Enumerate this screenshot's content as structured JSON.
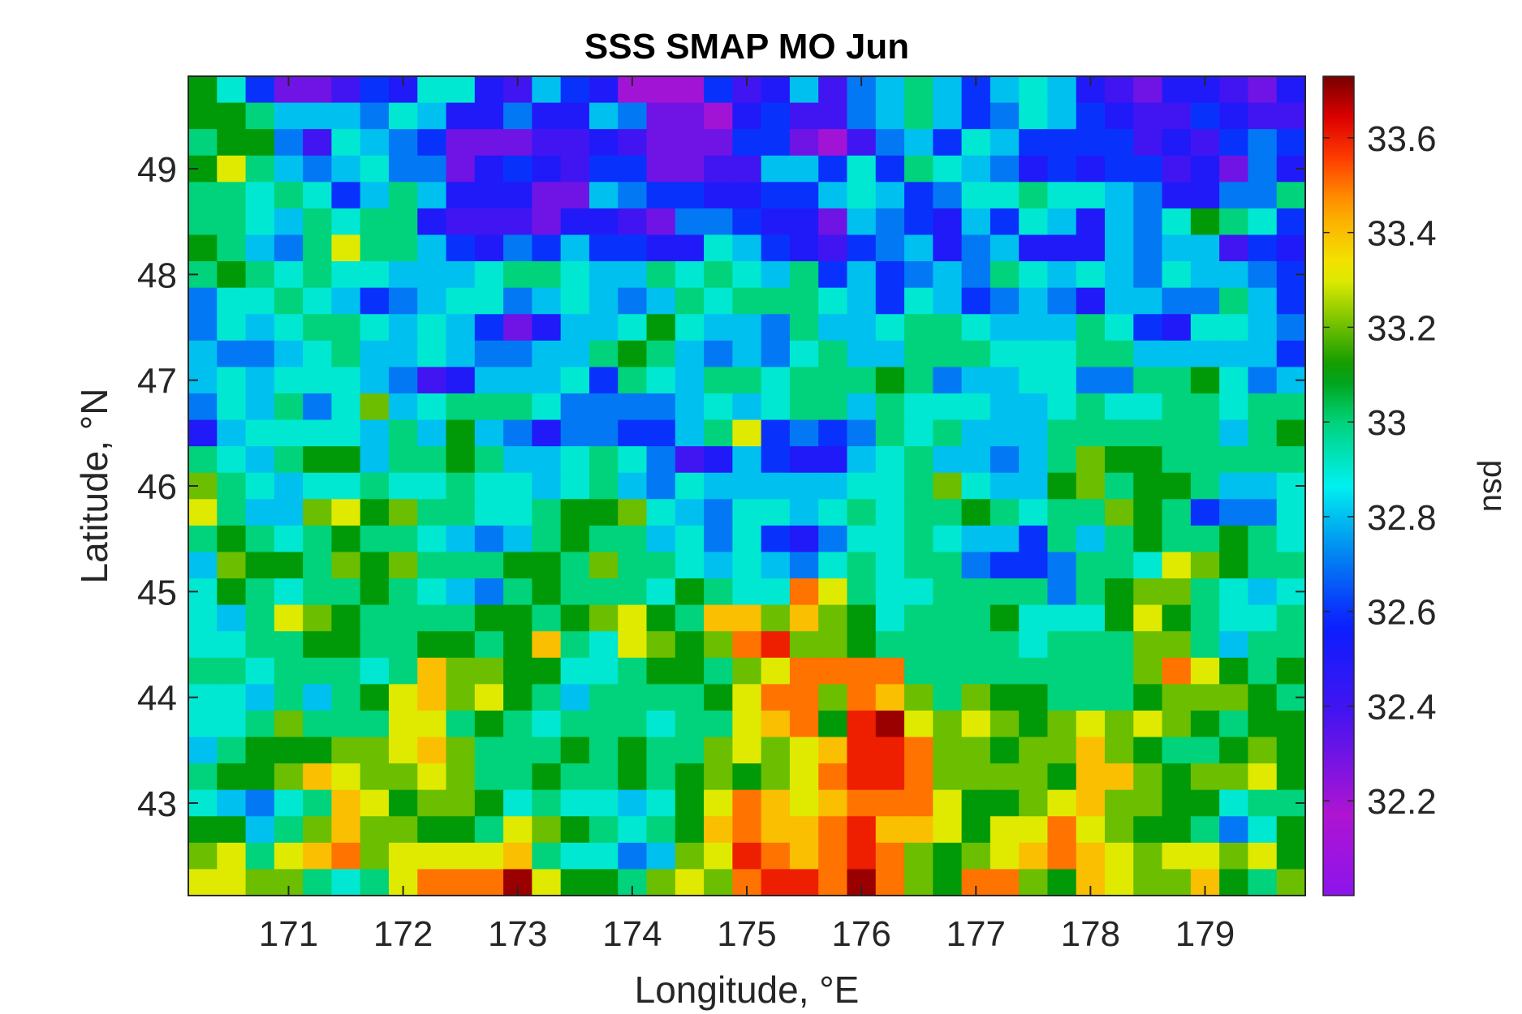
{
  "chart_data": {
    "type": "heatmap",
    "title": "SSS SMAP MO Jun",
    "xlabel": "Longitude, °E",
    "ylabel": "Latitude, °N",
    "colorbar_label": "psu",
    "xlim": [
      170.125,
      179.875
    ],
    "ylim": [
      42.125,
      49.875
    ],
    "clim": [
      32.0,
      33.73
    ],
    "x_ticks": [
      171,
      172,
      173,
      174,
      175,
      176,
      177,
      178,
      179
    ],
    "x_tick_labels": [
      "171",
      "172",
      "173",
      "174",
      "175",
      "176",
      "177",
      "178",
      "179"
    ],
    "y_ticks": [
      43,
      44,
      45,
      46,
      47,
      48,
      49
    ],
    "y_tick_labels": [
      "43",
      "44",
      "45",
      "46",
      "47",
      "48",
      "49"
    ],
    "colorbar_ticks": [
      32.2,
      32.4,
      32.6,
      32.8,
      33.0,
      33.2,
      33.4,
      33.6
    ],
    "colorbar_tick_labels": [
      "32.2",
      "32.4",
      "32.6",
      "32.8",
      "33",
      "33.2",
      "33.4",
      "33.6"
    ],
    "colormap": "jet-like (purple-blue-cyan-green-yellow-red-darkred)",
    "grid_resolution_deg": 0.25,
    "x": [
      170.25,
      170.5,
      170.75,
      171.0,
      171.25,
      171.5,
      171.75,
      172.0,
      172.25,
      172.5,
      172.75,
      173.0,
      173.25,
      173.5,
      173.75,
      174.0,
      174.25,
      174.5,
      174.75,
      175.0,
      175.25,
      175.5,
      175.75,
      176.0,
      176.25,
      176.5,
      176.75,
      177.0,
      177.25,
      177.5,
      177.75,
      178.0,
      178.25,
      178.5,
      178.75,
      179.0,
      179.25,
      179.5,
      179.75
    ],
    "y": [
      49.75,
      49.5,
      49.25,
      49.0,
      48.75,
      48.5,
      48.25,
      48.0,
      47.75,
      47.5,
      47.25,
      47.0,
      46.75,
      46.5,
      46.25,
      46.0,
      45.75,
      45.5,
      45.25,
      45.0,
      44.75,
      44.5,
      44.25,
      44.0,
      43.75,
      43.5,
      43.25,
      43.0,
      42.75,
      42.5,
      42.25
    ],
    "z_psu_rows_north_to_south": [
      [
        33.1,
        32.9,
        32.6,
        32.3,
        32.3,
        32.4,
        32.6,
        32.5,
        32.9,
        32.9,
        32.5,
        32.4,
        32.8,
        32.6,
        32.5,
        32.2,
        32.2,
        32.2,
        32.6,
        32.4,
        32.5,
        32.8,
        32.4,
        32.7,
        32.8,
        33.0,
        32.8,
        32.6,
        32.8,
        32.9,
        32.8,
        32.5,
        32.4,
        32.3,
        32.5,
        32.5,
        32.4,
        32.3,
        32.5
      ],
      [
        33.1,
        33.1,
        33.0,
        32.8,
        32.8,
        32.8,
        32.7,
        32.9,
        32.8,
        32.5,
        32.5,
        32.7,
        32.5,
        32.5,
        32.8,
        32.7,
        32.3,
        32.3,
        32.2,
        32.5,
        32.6,
        32.4,
        32.4,
        32.7,
        32.8,
        33.0,
        32.8,
        32.6,
        32.7,
        32.9,
        32.8,
        32.6,
        32.5,
        32.4,
        32.4,
        32.6,
        32.5,
        32.4,
        32.4
      ],
      [
        33.0,
        33.1,
        33.1,
        32.7,
        32.4,
        32.9,
        32.8,
        32.7,
        32.6,
        32.3,
        32.3,
        32.3,
        32.4,
        32.4,
        32.5,
        32.4,
        32.3,
        32.3,
        32.3,
        32.6,
        32.6,
        32.3,
        32.2,
        32.4,
        32.7,
        32.8,
        32.6,
        32.9,
        32.8,
        32.6,
        32.6,
        32.6,
        32.6,
        32.4,
        32.5,
        32.4,
        32.6,
        32.7,
        32.6
      ],
      [
        33.1,
        33.3,
        33.0,
        32.8,
        32.7,
        32.8,
        32.9,
        32.7,
        32.7,
        32.3,
        32.5,
        32.6,
        32.5,
        32.4,
        32.6,
        32.6,
        32.3,
        32.3,
        32.4,
        32.4,
        32.8,
        32.8,
        32.6,
        32.9,
        32.6,
        33.0,
        32.9,
        32.8,
        32.7,
        32.5,
        32.6,
        32.5,
        32.6,
        32.6,
        32.4,
        32.5,
        32.3,
        32.7,
        32.5
      ],
      [
        33.0,
        33.0,
        32.9,
        33.0,
        32.9,
        32.6,
        32.8,
        33.0,
        32.8,
        32.5,
        32.5,
        32.5,
        32.3,
        32.3,
        32.8,
        32.7,
        32.6,
        32.6,
        32.5,
        32.5,
        32.6,
        32.6,
        32.8,
        32.9,
        32.8,
        32.6,
        32.7,
        32.9,
        32.9,
        33.0,
        32.9,
        32.9,
        32.8,
        32.7,
        32.5,
        32.5,
        32.7,
        32.7,
        33.0
      ],
      [
        33.0,
        33.0,
        32.9,
        32.8,
        33.0,
        32.9,
        33.0,
        33.0,
        32.5,
        32.4,
        32.4,
        32.4,
        32.3,
        32.5,
        32.5,
        32.4,
        32.3,
        32.7,
        32.7,
        32.6,
        32.5,
        32.5,
        32.3,
        32.8,
        32.7,
        32.6,
        32.5,
        32.8,
        32.6,
        32.9,
        32.8,
        32.5,
        32.8,
        32.7,
        32.9,
        33.1,
        33.0,
        32.9,
        32.6
      ],
      [
        33.1,
        33.0,
        32.8,
        32.7,
        33.0,
        33.3,
        33.0,
        33.0,
        32.8,
        32.6,
        32.5,
        32.7,
        32.6,
        32.8,
        32.6,
        32.6,
        32.5,
        32.5,
        32.9,
        32.8,
        32.6,
        32.5,
        32.4,
        32.6,
        32.7,
        32.8,
        32.5,
        32.7,
        32.8,
        32.5,
        32.5,
        32.5,
        32.8,
        32.7,
        32.8,
        32.8,
        32.4,
        32.6,
        32.5
      ],
      [
        33.0,
        33.1,
        33.0,
        32.9,
        33.0,
        32.9,
        32.9,
        32.8,
        32.8,
        32.8,
        32.9,
        33.0,
        33.0,
        32.9,
        32.8,
        32.8,
        33.0,
        32.9,
        33.0,
        32.9,
        32.8,
        33.0,
        32.6,
        32.8,
        32.6,
        32.7,
        32.8,
        32.7,
        33.0,
        32.9,
        32.8,
        32.9,
        32.8,
        32.7,
        32.9,
        32.8,
        32.8,
        32.7,
        32.6
      ],
      [
        32.7,
        32.9,
        32.9,
        33.0,
        32.9,
        32.8,
        32.6,
        32.7,
        32.8,
        32.9,
        32.9,
        32.7,
        32.8,
        32.9,
        32.8,
        32.7,
        32.8,
        33.0,
        32.9,
        33.0,
        33.0,
        33.0,
        32.9,
        32.8,
        32.6,
        32.9,
        32.8,
        32.6,
        32.7,
        32.8,
        32.7,
        32.5,
        32.8,
        32.8,
        32.7,
        32.7,
        33.0,
        32.8,
        32.6
      ],
      [
        32.7,
        32.9,
        32.8,
        32.9,
        33.0,
        33.0,
        32.9,
        32.8,
        32.9,
        32.8,
        32.6,
        32.3,
        32.5,
        32.8,
        32.8,
        32.9,
        33.1,
        32.9,
        32.8,
        32.8,
        32.7,
        33.0,
        32.8,
        32.8,
        32.9,
        33.0,
        33.0,
        32.9,
        32.8,
        32.8,
        32.8,
        33.0,
        32.9,
        32.6,
        32.5,
        32.9,
        32.9,
        32.8,
        32.7
      ],
      [
        32.8,
        32.7,
        32.7,
        32.8,
        32.9,
        33.0,
        32.8,
        32.8,
        32.9,
        32.8,
        32.7,
        32.7,
        32.8,
        32.8,
        33.0,
        33.1,
        33.0,
        32.8,
        32.7,
        32.8,
        32.7,
        32.9,
        33.0,
        32.8,
        32.8,
        33.0,
        33.0,
        33.0,
        32.9,
        32.9,
        32.9,
        33.0,
        33.0,
        32.8,
        32.8,
        32.8,
        32.8,
        32.8,
        32.6
      ],
      [
        32.8,
        32.9,
        32.8,
        32.9,
        32.9,
        32.9,
        32.8,
        32.7,
        32.4,
        32.5,
        32.8,
        32.8,
        32.8,
        32.9,
        32.6,
        33.0,
        32.9,
        32.8,
        33.0,
        33.0,
        32.9,
        33.0,
        33.0,
        33.0,
        33.1,
        33.0,
        32.7,
        32.8,
        32.8,
        32.9,
        32.9,
        32.7,
        32.7,
        33.0,
        33.0,
        33.1,
        32.9,
        32.7,
        32.8
      ],
      [
        32.7,
        32.9,
        32.8,
        33.0,
        32.7,
        32.9,
        33.2,
        32.8,
        32.9,
        33.0,
        33.0,
        33.0,
        32.9,
        32.7,
        32.7,
        32.7,
        32.7,
        32.8,
        32.9,
        32.8,
        32.9,
        33.0,
        33.0,
        32.8,
        33.0,
        32.9,
        32.9,
        32.9,
        32.8,
        32.8,
        32.9,
        33.0,
        32.9,
        32.9,
        33.0,
        33.0,
        32.9,
        33.0,
        33.0
      ],
      [
        32.5,
        32.8,
        32.9,
        32.9,
        32.9,
        32.9,
        32.8,
        33.0,
        32.8,
        33.1,
        32.8,
        32.7,
        32.5,
        32.7,
        32.7,
        32.6,
        32.6,
        32.8,
        33.0,
        33.3,
        32.6,
        32.7,
        32.6,
        32.7,
        33.0,
        32.9,
        33.0,
        32.8,
        32.8,
        32.8,
        33.0,
        33.0,
        33.0,
        33.0,
        33.0,
        33.0,
        32.8,
        33.0,
        33.1
      ],
      [
        33.0,
        32.9,
        32.8,
        33.0,
        33.1,
        33.1,
        32.8,
        33.0,
        33.0,
        33.1,
        33.0,
        32.8,
        32.8,
        32.9,
        33.0,
        32.9,
        32.7,
        32.4,
        32.5,
        32.8,
        32.6,
        32.5,
        32.5,
        32.8,
        32.9,
        33.0,
        32.8,
        32.8,
        32.7,
        32.8,
        33.0,
        33.2,
        33.1,
        33.1,
        33.0,
        33.0,
        33.0,
        33.0,
        33.0
      ],
      [
        33.2,
        33.0,
        32.9,
        32.8,
        32.9,
        32.9,
        33.0,
        32.9,
        32.9,
        33.0,
        32.9,
        32.9,
        32.8,
        32.9,
        33.0,
        32.8,
        32.7,
        32.9,
        32.8,
        32.8,
        32.8,
        32.8,
        32.8,
        32.9,
        32.9,
        33.0,
        33.2,
        32.9,
        32.8,
        32.8,
        33.1,
        33.2,
        33.0,
        33.1,
        33.1,
        33.0,
        32.8,
        32.8,
        32.9
      ],
      [
        33.3,
        33.0,
        32.8,
        32.8,
        33.2,
        33.3,
        33.1,
        33.2,
        33.0,
        33.0,
        32.9,
        32.9,
        33.0,
        33.1,
        33.1,
        33.2,
        32.9,
        32.8,
        32.7,
        32.9,
        32.9,
        32.8,
        32.9,
        33.0,
        32.9,
        33.0,
        33.0,
        33.1,
        33.0,
        32.9,
        33.0,
        33.0,
        33.2,
        33.1,
        33.0,
        32.6,
        32.7,
        32.7,
        32.9
      ],
      [
        33.0,
        33.1,
        33.0,
        32.9,
        33.0,
        33.1,
        33.0,
        33.0,
        32.9,
        32.8,
        32.7,
        32.8,
        33.0,
        33.1,
        33.0,
        33.0,
        32.8,
        32.9,
        32.7,
        32.9,
        32.6,
        32.5,
        32.7,
        32.9,
        32.9,
        33.0,
        32.9,
        32.8,
        32.8,
        32.6,
        33.0,
        32.8,
        33.0,
        33.1,
        33.0,
        33.0,
        33.1,
        33.0,
        32.9
      ],
      [
        32.8,
        33.2,
        33.1,
        33.1,
        33.0,
        33.2,
        33.1,
        33.2,
        33.0,
        33.0,
        33.0,
        33.1,
        33.1,
        33.0,
        33.2,
        33.0,
        33.0,
        32.9,
        32.8,
        32.9,
        32.8,
        32.7,
        32.9,
        33.0,
        32.9,
        33.0,
        33.0,
        32.7,
        32.6,
        32.6,
        32.7,
        33.0,
        33.0,
        32.9,
        33.3,
        33.2,
        33.1,
        33.0,
        33.0
      ],
      [
        32.9,
        33.1,
        33.0,
        32.9,
        33.0,
        33.0,
        33.1,
        33.0,
        32.9,
        32.8,
        32.7,
        33.0,
        33.1,
        33.0,
        33.0,
        33.0,
        32.9,
        33.1,
        33.0,
        32.9,
        32.9,
        33.5,
        33.3,
        33.0,
        32.9,
        32.9,
        33.0,
        33.0,
        33.0,
        33.0,
        32.7,
        33.0,
        33.1,
        33.2,
        33.2,
        33.0,
        32.9,
        32.8,
        32.9
      ],
      [
        32.9,
        32.8,
        33.0,
        33.3,
        33.2,
        33.1,
        33.0,
        33.0,
        33.0,
        33.0,
        33.1,
        33.1,
        33.0,
        33.1,
        33.2,
        33.3,
        33.1,
        33.0,
        33.4,
        33.4,
        33.2,
        33.4,
        33.2,
        33.1,
        32.9,
        33.0,
        33.0,
        33.0,
        33.1,
        32.9,
        32.9,
        32.9,
        33.1,
        33.3,
        33.1,
        33.0,
        32.9,
        32.9,
        33.0
      ],
      [
        32.9,
        32.9,
        33.0,
        33.0,
        33.1,
        33.1,
        33.0,
        33.0,
        33.1,
        33.1,
        33.0,
        33.1,
        33.4,
        33.0,
        32.9,
        33.3,
        33.2,
        33.1,
        33.2,
        33.5,
        33.6,
        33.2,
        33.2,
        33.1,
        33.0,
        33.0,
        33.0,
        33.0,
        33.0,
        32.9,
        33.0,
        33.0,
        33.0,
        33.2,
        33.2,
        33.0,
        32.8,
        33.0,
        33.0
      ],
      [
        33.0,
        33.0,
        32.9,
        33.0,
        33.0,
        33.0,
        32.9,
        33.0,
        33.4,
        33.2,
        33.2,
        33.1,
        33.1,
        32.9,
        32.9,
        33.0,
        33.1,
        33.1,
        33.0,
        33.2,
        33.3,
        33.5,
        33.5,
        33.5,
        33.5,
        33.0,
        33.0,
        33.0,
        33.0,
        33.0,
        33.0,
        33.0,
        33.0,
        33.2,
        33.5,
        33.3,
        33.1,
        33.0,
        33.1
      ],
      [
        32.9,
        32.9,
        32.8,
        33.0,
        32.8,
        33.0,
        33.1,
        33.3,
        33.4,
        33.2,
        33.3,
        33.1,
        33.0,
        32.8,
        33.0,
        33.0,
        33.0,
        33.0,
        33.1,
        33.3,
        33.5,
        33.5,
        33.2,
        33.5,
        33.4,
        33.2,
        33.0,
        33.2,
        33.1,
        33.1,
        33.0,
        33.0,
        33.0,
        33.1,
        33.2,
        33.2,
        33.2,
        33.1,
        33.0
      ],
      [
        32.9,
        32.9,
        33.0,
        33.2,
        33.0,
        33.0,
        33.0,
        33.3,
        33.3,
        33.0,
        33.1,
        33.0,
        32.9,
        33.0,
        33.0,
        33.0,
        32.9,
        33.0,
        33.0,
        33.3,
        33.4,
        33.5,
        33.1,
        33.6,
        33.7,
        33.3,
        33.2,
        33.3,
        33.2,
        33.1,
        33.2,
        33.3,
        33.2,
        33.3,
        33.2,
        33.1,
        33.0,
        33.1,
        33.1
      ],
      [
        32.8,
        33.0,
        33.1,
        33.1,
        33.1,
        33.2,
        33.2,
        33.3,
        33.4,
        33.2,
        33.0,
        33.0,
        33.0,
        33.1,
        33.0,
        33.1,
        33.0,
        33.0,
        33.2,
        33.3,
        33.2,
        33.3,
        33.4,
        33.6,
        33.6,
        33.5,
        33.2,
        33.2,
        33.1,
        33.2,
        33.2,
        33.4,
        33.2,
        33.1,
        33.0,
        33.0,
        33.1,
        33.2,
        33.1
      ],
      [
        33.0,
        33.1,
        33.1,
        33.2,
        33.4,
        33.3,
        33.2,
        33.2,
        33.3,
        33.2,
        33.0,
        33.0,
        33.1,
        33.0,
        33.0,
        33.1,
        33.0,
        33.1,
        33.2,
        33.1,
        33.2,
        33.3,
        33.5,
        33.6,
        33.6,
        33.5,
        33.2,
        33.2,
        33.2,
        33.2,
        33.1,
        33.4,
        33.4,
        33.2,
        33.1,
        33.2,
        33.2,
        33.3,
        33.1
      ],
      [
        32.9,
        32.8,
        32.7,
        32.9,
        33.0,
        33.4,
        33.3,
        33.1,
        33.2,
        33.2,
        33.1,
        32.9,
        33.0,
        32.9,
        32.9,
        32.8,
        32.9,
        33.1,
        33.3,
        33.5,
        33.4,
        33.3,
        33.4,
        33.5,
        33.5,
        33.5,
        33.3,
        33.1,
        33.1,
        33.2,
        33.3,
        33.4,
        33.2,
        33.2,
        33.1,
        33.1,
        32.9,
        33.0,
        33.0
      ],
      [
        33.1,
        33.1,
        32.8,
        33.0,
        33.2,
        33.4,
        33.2,
        33.2,
        33.1,
        33.1,
        33.0,
        33.3,
        33.2,
        33.1,
        33.0,
        32.9,
        33.0,
        33.1,
        33.4,
        33.5,
        33.4,
        33.4,
        33.5,
        33.6,
        33.4,
        33.4,
        33.3,
        33.1,
        33.3,
        33.3,
        33.5,
        33.3,
        33.2,
        33.1,
        33.1,
        33.0,
        32.7,
        32.9,
        33.1
      ],
      [
        33.2,
        33.3,
        33.0,
        33.3,
        33.4,
        33.5,
        33.2,
        33.3,
        33.3,
        33.3,
        33.3,
        33.4,
        33.0,
        32.9,
        32.9,
        32.7,
        32.8,
        33.2,
        33.3,
        33.6,
        33.5,
        33.4,
        33.5,
        33.6,
        33.5,
        33.2,
        33.1,
        33.2,
        33.3,
        33.4,
        33.5,
        33.4,
        33.3,
        33.2,
        33.3,
        33.3,
        33.2,
        33.3,
        33.1
      ],
      [
        33.3,
        33.3,
        33.2,
        33.2,
        33.0,
        32.9,
        33.0,
        33.3,
        33.5,
        33.5,
        33.5,
        33.7,
        33.3,
        33.1,
        33.1,
        33.0,
        33.2,
        33.3,
        33.2,
        33.5,
        33.6,
        33.6,
        33.5,
        33.7,
        33.5,
        33.2,
        33.1,
        33.5,
        33.5,
        33.2,
        33.1,
        33.4,
        33.3,
        33.2,
        33.2,
        33.4,
        33.1,
        33.0,
        33.2
      ]
    ]
  }
}
